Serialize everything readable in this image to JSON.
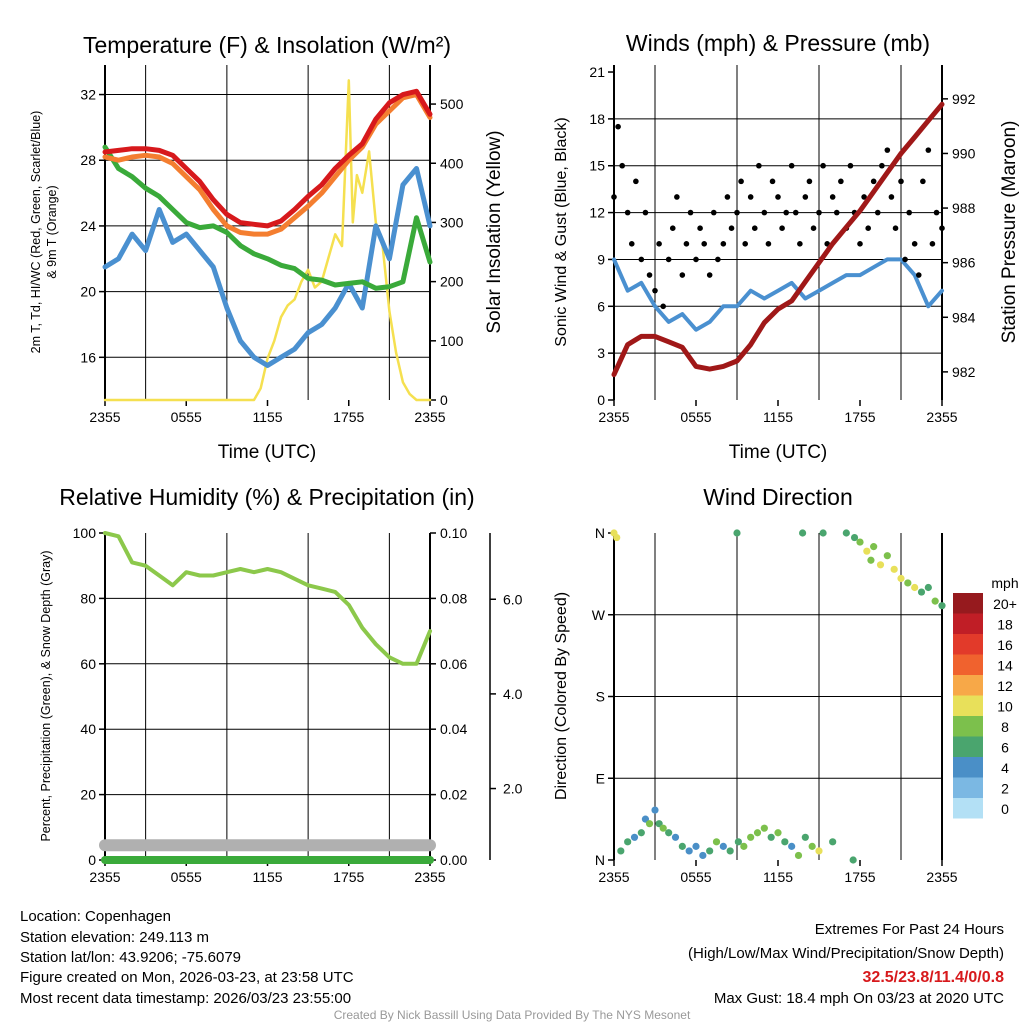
{
  "x_tick_labels": [
    "2355",
    "0555",
    "1155",
    "1755",
    "2355"
  ],
  "colors": {
    "red": "#d7191c",
    "orange": "#f47e30",
    "green": "#3aaa3a",
    "blue": "#4a90d0",
    "yellow": "#f5e050",
    "maroon": "#a01818",
    "rh": "#8cc84b",
    "precip": "#3aaa3a",
    "snow": "#b0b0b0"
  },
  "chart_data": [
    {
      "type": "line",
      "title": "Temperature (F) & Insolation (W/m²)",
      "xlabel": "Time (UTC)",
      "ylabel_line1": "2m T, Td, HI/WC (Red, Green, Scarlet/Blue)",
      "ylabel_line2": "& 9m T (Orange)",
      "y2label": "Solar Insolation (Yellow)",
      "ylim": [
        13.4,
        33.8
      ],
      "y2lim": [
        0,
        566
      ],
      "yticks": [
        "16",
        "20",
        "24",
        "28",
        "32"
      ],
      "y2ticks": [
        "0",
        "100",
        "200",
        "300",
        "400",
        "500"
      ],
      "x_hours": [
        0,
        1,
        2,
        3,
        4,
        5,
        6,
        7,
        8,
        9,
        10,
        11,
        12,
        13,
        14,
        15,
        16,
        17,
        18,
        19,
        20,
        21,
        22,
        23,
        24
      ],
      "series": [
        {
          "name": "2m T",
          "color": "red",
          "values": [
            28.5,
            28.6,
            28.7,
            28.7,
            28.6,
            28.3,
            27.5,
            26.7,
            25.6,
            24.7,
            24.2,
            24.1,
            24.0,
            24.3,
            25.0,
            25.8,
            26.5,
            27.5,
            28.3,
            29.0,
            30.5,
            31.5,
            32.0,
            32.2,
            30.8
          ]
        },
        {
          "name": "9m T",
          "color": "orange",
          "values": [
            28.2,
            28.0,
            28.2,
            28.3,
            28.2,
            27.8,
            27.0,
            26.2,
            25.0,
            24.0,
            23.6,
            23.5,
            23.5,
            23.8,
            24.5,
            25.2,
            26.0,
            27.0,
            28.0,
            28.8,
            30.2,
            31.0,
            31.8,
            32.0,
            30.6
          ]
        },
        {
          "name": "Td",
          "color": "green",
          "values": [
            28.8,
            27.5,
            27.0,
            26.3,
            25.8,
            25.0,
            24.2,
            23.9,
            24.0,
            23.6,
            22.8,
            22.3,
            22.0,
            21.6,
            21.4,
            20.8,
            20.7,
            20.4,
            20.5,
            20.6,
            20.2,
            20.3,
            20.6,
            24.5,
            21.8
          ]
        },
        {
          "name": "HI/WC",
          "color": "blue",
          "values": [
            21.5,
            22.0,
            23.5,
            22.5,
            25.0,
            23.0,
            23.5,
            22.5,
            21.5,
            19.0,
            17.0,
            16.0,
            15.5,
            16.0,
            16.5,
            17.5,
            18.0,
            19.0,
            20.5,
            19.0,
            24.0,
            22.0,
            26.5,
            27.5,
            24.0
          ]
        }
      ],
      "insolation": {
        "x_hours": [
          0,
          10,
          11,
          11.5,
          12,
          12.5,
          13,
          13.5,
          14,
          14.5,
          15,
          15.5,
          16,
          16.5,
          17,
          17.5,
          18,
          18.3,
          18.6,
          19,
          19.5,
          20,
          20.5,
          21,
          21.5,
          22,
          22.5,
          23,
          24
        ],
        "values": [
          0,
          0,
          0,
          20,
          70,
          100,
          140,
          160,
          170,
          200,
          220,
          190,
          200,
          240,
          280,
          260,
          540,
          300,
          380,
          350,
          420,
          300,
          260,
          150,
          80,
          30,
          10,
          0,
          0
        ]
      }
    },
    {
      "type": "line",
      "title": "Winds (mph) & Pressure (mb)",
      "xlabel": "Time (UTC)",
      "ylabel": "Sonic Wind & Gust (Blue, Black)",
      "y2label": "Station Pressure (Maroon)",
      "ylim": [
        0,
        21.45
      ],
      "y2lim": [
        980.97,
        993.24
      ],
      "yticks": [
        "0",
        "3",
        "6",
        "9",
        "12",
        "15",
        "18",
        "21"
      ],
      "y2ticks": [
        "982",
        "984",
        "986",
        "988",
        "990",
        "992"
      ],
      "x_hours": [
        0,
        1,
        2,
        3,
        4,
        5,
        6,
        7,
        8,
        9,
        10,
        11,
        12,
        13,
        14,
        15,
        16,
        17,
        18,
        19,
        20,
        21,
        22,
        23,
        24
      ],
      "wind": [
        9,
        7,
        7.5,
        6,
        5,
        5.5,
        4.5,
        5,
        6,
        6,
        7,
        6.5,
        7,
        7.5,
        6.5,
        7,
        7.5,
        8,
        8,
        8.5,
        9,
        9,
        8,
        6,
        7
      ],
      "pressure": [
        981.9,
        983.0,
        983.3,
        983.3,
        983.1,
        982.9,
        982.2,
        982.1,
        982.2,
        982.4,
        983.0,
        983.8,
        984.3,
        984.6,
        985.3,
        986.0,
        986.7,
        987.3,
        987.9,
        988.6,
        989.3,
        990.0,
        990.6,
        991.2,
        991.8
      ],
      "gust_hours": [
        0,
        0.3,
        0.6,
        1,
        1.3,
        1.6,
        2,
        2.3,
        2.6,
        3,
        3.3,
        3.6,
        4,
        4.3,
        4.6,
        5,
        5.3,
        5.6,
        6,
        6.3,
        6.6,
        7,
        7.3,
        7.6,
        8,
        8.3,
        8.6,
        9,
        9.3,
        9.6,
        10,
        10.3,
        10.6,
        11,
        11.3,
        11.6,
        12,
        12.3,
        12.6,
        13,
        13.3,
        13.6,
        14,
        14.3,
        14.6,
        15,
        15.3,
        15.6,
        16,
        16.3,
        16.6,
        17,
        17.3,
        17.6,
        18,
        18.3,
        18.6,
        19,
        19.3,
        19.6,
        20,
        20.3,
        20.6,
        21,
        21.3,
        21.6,
        22,
        22.3,
        22.6,
        23,
        23.3,
        23.6,
        24
      ],
      "gust": [
        13,
        17.5,
        15,
        12,
        10,
        14,
        9,
        12,
        8,
        7,
        10,
        6,
        9,
        11,
        13,
        8,
        10,
        12,
        9,
        11,
        10,
        8,
        12,
        9,
        10,
        13,
        11,
        12,
        14,
        10,
        13,
        11,
        15,
        12,
        10,
        14,
        13,
        11,
        12,
        15,
        12,
        10,
        13,
        14,
        11,
        12,
        15,
        10,
        13,
        12,
        14,
        11,
        15,
        12,
        10,
        13,
        11,
        14,
        12,
        15,
        16,
        13,
        11,
        14,
        9,
        12,
        10,
        8,
        14,
        16,
        10,
        12,
        11
      ]
    },
    {
      "type": "line",
      "title": "Relative Humidity (%) & Precipitation (in)",
      "ylabel": "Percent, Precipitation (Green), & Snow Depth (Gray)",
      "ylim": [
        0,
        100
      ],
      "y2lim": [
        0,
        0.1
      ],
      "y3lim": [
        0.49,
        7.4
      ],
      "yticks": [
        "0",
        "20",
        "40",
        "60",
        "80",
        "100"
      ],
      "y2ticks": [
        "0.00",
        "0.02",
        "0.04",
        "0.06",
        "0.08",
        "0.10"
      ],
      "y3ticks": [
        "2.0",
        "4.0",
        "6.0"
      ],
      "x_hours": [
        0,
        1,
        2,
        3,
        4,
        5,
        6,
        7,
        8,
        9,
        10,
        11,
        12,
        13,
        14,
        15,
        16,
        17,
        18,
        19,
        20,
        21,
        22,
        23,
        24
      ],
      "rh": [
        100,
        99,
        91,
        90,
        87,
        84,
        88,
        87,
        87,
        88,
        89,
        88,
        89,
        88,
        86,
        84,
        83,
        82,
        78,
        71,
        66,
        62,
        60,
        60,
        70
      ],
      "precip": [
        0,
        0,
        0,
        0,
        0,
        0,
        0,
        0,
        0,
        0,
        0,
        0,
        0,
        0,
        0,
        0,
        0,
        0,
        0,
        0,
        0,
        0,
        0,
        0,
        0
      ],
      "snow_depth": [
        0.8,
        0.8,
        0.8,
        0.8,
        0.8,
        0.8,
        0.8,
        0.8,
        0.8,
        0.8,
        0.8,
        0.8,
        0.8,
        0.8,
        0.8,
        0.8,
        0.8,
        0.8,
        0.8,
        0.8,
        0.8,
        0.8,
        0.8,
        0.8,
        0.8
      ]
    },
    {
      "type": "scatter",
      "title": "Wind Direction",
      "ylabel": "Direction (Colored By Speed)",
      "ylim": [
        0,
        360
      ],
      "yticks": [
        "N",
        "E",
        "S",
        "W",
        "N"
      ],
      "points": [
        [
          0,
          360,
          10
        ],
        [
          0.2,
          355,
          10
        ],
        [
          0.5,
          10,
          6
        ],
        [
          1,
          20,
          6
        ],
        [
          1.5,
          25,
          4
        ],
        [
          2,
          30,
          6
        ],
        [
          2.3,
          45,
          4
        ],
        [
          2.6,
          40,
          8
        ],
        [
          3,
          55,
          4
        ],
        [
          3.3,
          40,
          6
        ],
        [
          3.6,
          35,
          8
        ],
        [
          4,
          30,
          6
        ],
        [
          4.5,
          25,
          4
        ],
        [
          5,
          15,
          6
        ],
        [
          5.5,
          10,
          4
        ],
        [
          6,
          15,
          4
        ],
        [
          6.5,
          5,
          4
        ],
        [
          7,
          10,
          6
        ],
        [
          7.5,
          20,
          8
        ],
        [
          8,
          15,
          4
        ],
        [
          8.5,
          10,
          6
        ],
        [
          9,
          360,
          6
        ],
        [
          9.1,
          20,
          6
        ],
        [
          9.5,
          15,
          8
        ],
        [
          10,
          25,
          8
        ],
        [
          10.5,
          30,
          8
        ],
        [
          11,
          35,
          8
        ],
        [
          11.5,
          25,
          6
        ],
        [
          12,
          30,
          8
        ],
        [
          12.5,
          20,
          6
        ],
        [
          13,
          15,
          4
        ],
        [
          13.5,
          5,
          8
        ],
        [
          13.8,
          360,
          6
        ],
        [
          14,
          25,
          6
        ],
        [
          14.5,
          15,
          8
        ],
        [
          15,
          10,
          10
        ],
        [
          15.3,
          360,
          6
        ],
        [
          16,
          20,
          6
        ],
        [
          17,
          360,
          6
        ],
        [
          17.5,
          0,
          6
        ],
        [
          17.6,
          355,
          6
        ],
        [
          18,
          350,
          8
        ],
        [
          18.5,
          340,
          10
        ],
        [
          18.8,
          330,
          8
        ],
        [
          19,
          345,
          8
        ],
        [
          19.5,
          325,
          10
        ],
        [
          20,
          335,
          8
        ],
        [
          20.5,
          320,
          10
        ],
        [
          21,
          310,
          10
        ],
        [
          21.5,
          305,
          8
        ],
        [
          22,
          300,
          10
        ],
        [
          22.5,
          295,
          6
        ],
        [
          23,
          300,
          6
        ],
        [
          23.5,
          285,
          8
        ],
        [
          24,
          280,
          6
        ]
      ]
    }
  ],
  "legend": {
    "unit": "mph",
    "bins": [
      {
        "label": "20+",
        "color": "#961a1e"
      },
      {
        "label": "18",
        "color": "#c01e26"
      },
      {
        "label": "16",
        "color": "#e23a2a"
      },
      {
        "label": "14",
        "color": "#f0622e"
      },
      {
        "label": "12",
        "color": "#f7a848"
      },
      {
        "label": "10",
        "color": "#e8e05a"
      },
      {
        "label": "8",
        "color": "#7cc04c"
      },
      {
        "label": "6",
        "color": "#4aa56e"
      },
      {
        "label": "4",
        "color": "#4a8fc7"
      },
      {
        "label": "2",
        "color": "#7bb8e3"
      },
      {
        "label": "0",
        "color": "#b3e0f5"
      }
    ]
  },
  "info": {
    "location": "Location: Copenhagen",
    "elevation": "Station elevation: 249.113 m",
    "latlon": "Station lat/lon: 43.9206; -75.6079",
    "created": "Figure created on Mon, 2026-03-23, at 23:58 UTC",
    "recent": "Most recent data timestamp: 2026/03/23 23:55:00"
  },
  "extremes": {
    "title": "Extremes For Past 24 Hours",
    "subtitle": "(High/Low/Max Wind/Precipitation/Snow Depth)",
    "values": "32.5/23.8/11.4/0/0.8",
    "max_gust": "Max Gust: 18.4 mph On 03/23 at 2020 UTC"
  },
  "credit": "Created By Nick Bassill Using Data Provided By The NYS Mesonet"
}
